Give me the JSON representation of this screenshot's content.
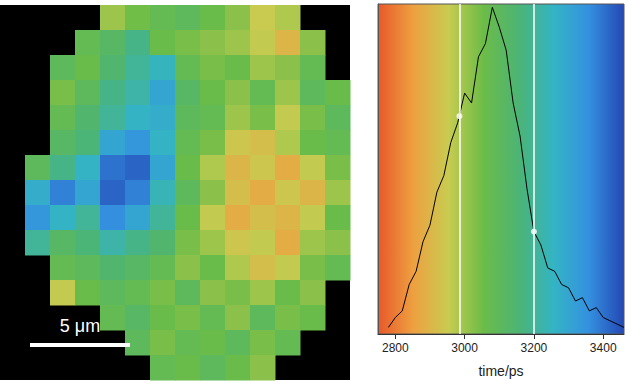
{
  "chart_data": [
    {
      "type": "heatmap",
      "tick_labels": false,
      "xlim": [
        0,
        17.5
      ],
      "ylim": [
        0,
        18.75
      ],
      "cell_size": 1.25,
      "colorbar": {
        "range": [
          2750,
          3460
        ]
      },
      "cells": [
        [
          null,
          null,
          null,
          null,
          3000,
          3050,
          3080,
          3100,
          3060,
          3020,
          2950,
          2980,
          null,
          null
        ],
        [
          null,
          null,
          null,
          3080,
          3120,
          3180,
          3060,
          3040,
          3020,
          3000,
          2960,
          2900,
          3020,
          null
        ],
        [
          null,
          null,
          3100,
          3060,
          3140,
          3200,
          3250,
          3080,
          3040,
          3060,
          3000,
          3020,
          3080,
          null
        ],
        [
          null,
          null,
          3040,
          3100,
          3180,
          3220,
          3300,
          3120,
          3060,
          3020,
          3080,
          3000,
          3100,
          3060
        ],
        [
          null,
          null,
          3080,
          3140,
          3200,
          3260,
          3280,
          3100,
          3080,
          3000,
          3040,
          2960,
          3040,
          3100
        ],
        [
          null,
          null,
          3120,
          3160,
          3300,
          3340,
          3260,
          3080,
          3040,
          2940,
          2920,
          2980,
          3060,
          3080
        ],
        [
          null,
          3100,
          3180,
          3260,
          3400,
          3420,
          3300,
          3060,
          2980,
          2900,
          2940,
          2880,
          2960,
          3040
        ],
        [
          null,
          3280,
          3380,
          3300,
          3420,
          3380,
          3240,
          3100,
          3020,
          2920,
          2880,
          2940,
          2900,
          3000
        ],
        [
          null,
          3340,
          3260,
          3200,
          3360,
          3300,
          3200,
          3060,
          2960,
          2880,
          2920,
          2900,
          2960,
          3060
        ],
        [
          null,
          3200,
          3120,
          3160,
          3220,
          3180,
          3140,
          3040,
          3000,
          2940,
          2960,
          2880,
          3000,
          3020
        ],
        [
          null,
          null,
          3080,
          3100,
          3140,
          3120,
          3080,
          3020,
          3060,
          2980,
          2920,
          2960,
          3040,
          3080
        ],
        [
          null,
          null,
          2960,
          3060,
          3100,
          3080,
          3040,
          3100,
          3020,
          3040,
          3000,
          3060,
          3020,
          null
        ],
        [
          null,
          null,
          null,
          null,
          3080,
          3120,
          3060,
          3040,
          3080,
          3020,
          3100,
          3040,
          3060,
          null
        ],
        [
          null,
          null,
          null,
          null,
          null,
          3100,
          3040,
          3080,
          3060,
          3100,
          3040,
          3080,
          null,
          null
        ],
        [
          null,
          null,
          null,
          null,
          null,
          null,
          3080,
          3060,
          3100,
          3060,
          3020,
          null,
          null,
          null
        ]
      ],
      "scale_bar": {
        "label": "5 μm",
        "length": 5,
        "x": 1.5,
        "y": 1.75
      }
    },
    {
      "type": "line",
      "x_label": "time/ps",
      "tick_labels": "x",
      "grid": false,
      "color": "#000000",
      "xlim": [
        2750,
        3460
      ],
      "xticks": [
        2800,
        3000,
        3200,
        3400
      ],
      "ylim": [
        0,
        100
      ],
      "x": [
        2780,
        2800,
        2820,
        2840,
        2860,
        2880,
        2900,
        2920,
        2940,
        2960,
        2980,
        3000,
        3020,
        3040,
        3060,
        3080,
        3100,
        3120,
        3140,
        3160,
        3180,
        3200,
        3220,
        3240,
        3260,
        3280,
        3300,
        3320,
        3340,
        3360,
        3380,
        3400,
        3420,
        3440,
        3460
      ],
      "values": [
        2,
        5,
        7,
        15,
        19,
        28,
        33,
        43,
        48,
        58,
        64,
        73,
        70,
        84,
        88,
        99,
        93,
        86,
        70,
        60,
        44,
        31,
        27,
        20,
        19,
        15,
        14,
        10,
        11,
        7,
        8,
        5,
        4,
        3,
        2
      ],
      "vlines": [
        2985,
        3200
      ],
      "points": [
        [
          2985,
          66
        ],
        [
          3200,
          31
        ]
      ]
    }
  ]
}
